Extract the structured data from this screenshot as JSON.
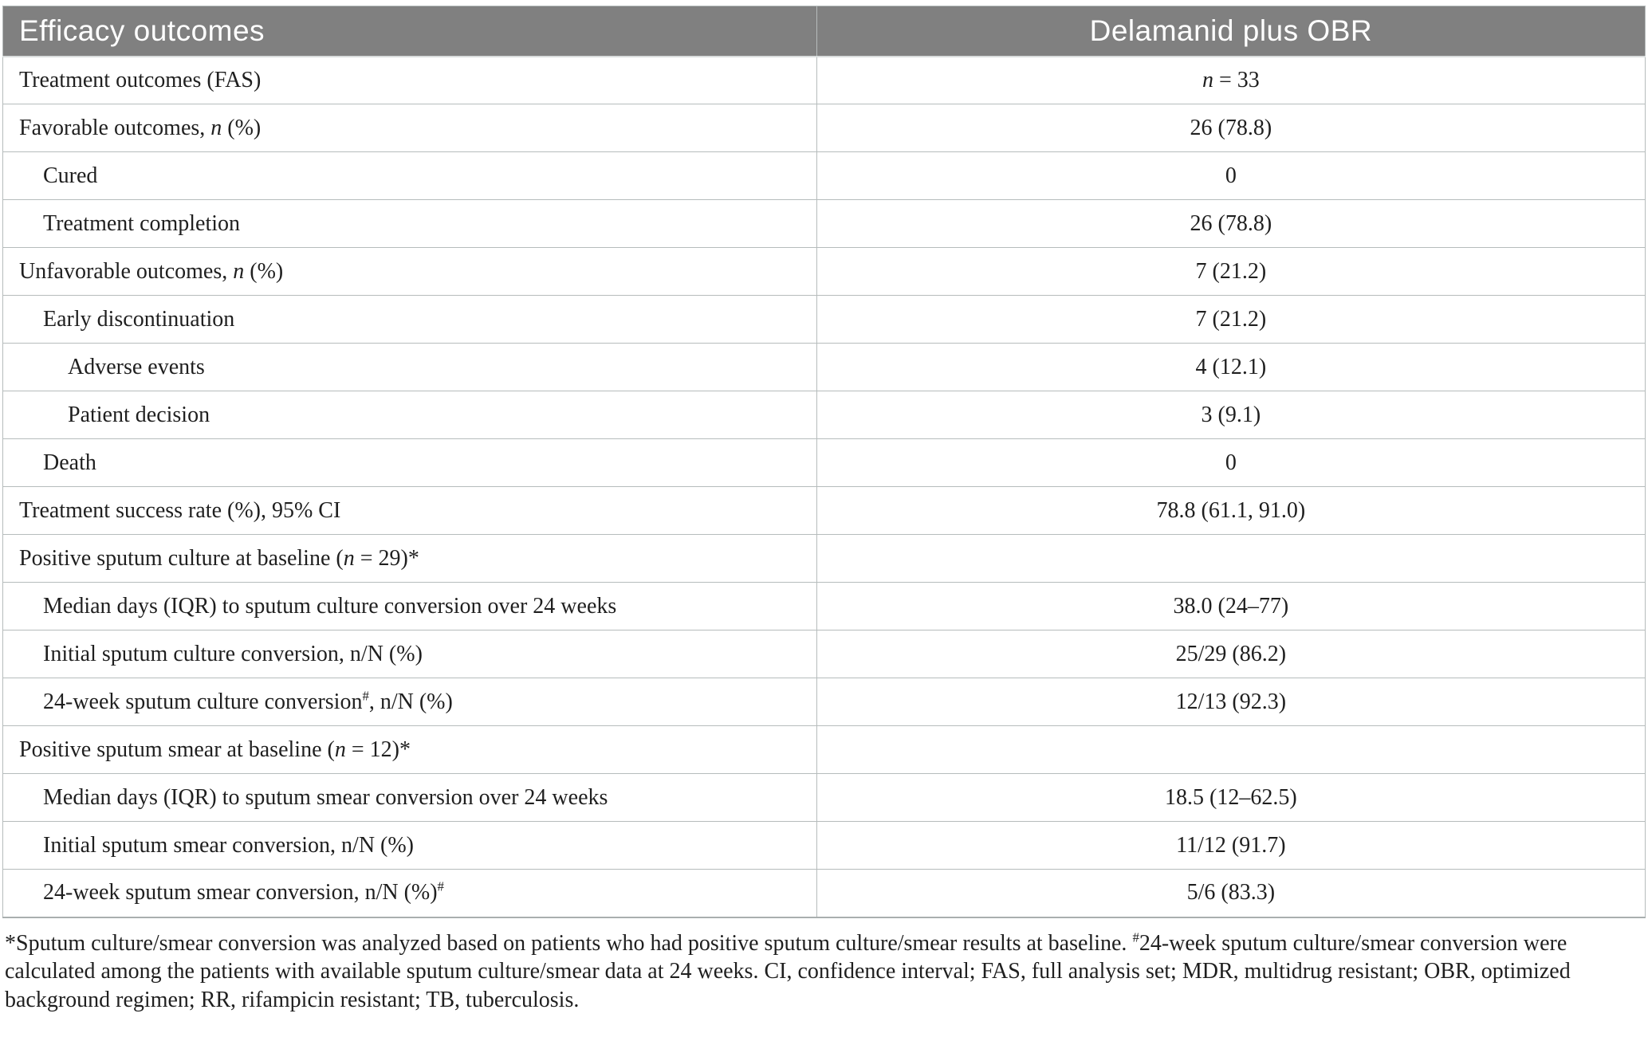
{
  "colors": {
    "header_bg": "#808080",
    "header_text": "#ffffff",
    "border": "#b6bcbc",
    "text": "#1f1f1f"
  },
  "table": {
    "header": {
      "col1": "Efficacy outcomes",
      "col2": "Delamanid plus OBR"
    },
    "rows": [
      {
        "indent": 0,
        "label": [
          {
            "t": "Treatment outcomes (FAS)"
          }
        ],
        "value": [
          {
            "t": "n",
            "i": true
          },
          {
            "t": " = 33"
          }
        ]
      },
      {
        "indent": 0,
        "label": [
          {
            "t": "Favorable outcomes, "
          },
          {
            "t": "n",
            "i": true
          },
          {
            "t": " (%)"
          }
        ],
        "value": [
          {
            "t": "26 (78.8)"
          }
        ]
      },
      {
        "indent": 1,
        "label": [
          {
            "t": "Cured"
          }
        ],
        "value": [
          {
            "t": "0"
          }
        ]
      },
      {
        "indent": 1,
        "label": [
          {
            "t": "Treatment completion"
          }
        ],
        "value": [
          {
            "t": "26 (78.8)"
          }
        ]
      },
      {
        "indent": 0,
        "label": [
          {
            "t": "Unfavorable outcomes, "
          },
          {
            "t": "n",
            "i": true
          },
          {
            "t": " (%)"
          }
        ],
        "value": [
          {
            "t": "7 (21.2)"
          }
        ]
      },
      {
        "indent": 1,
        "label": [
          {
            "t": "Early discontinuation"
          }
        ],
        "value": [
          {
            "t": "7 (21.2)"
          }
        ]
      },
      {
        "indent": 2,
        "label": [
          {
            "t": "Adverse events"
          }
        ],
        "value": [
          {
            "t": "4 (12.1)"
          }
        ]
      },
      {
        "indent": 2,
        "label": [
          {
            "t": "Patient decision"
          }
        ],
        "value": [
          {
            "t": "3 (9.1)"
          }
        ]
      },
      {
        "indent": 1,
        "label": [
          {
            "t": "Death"
          }
        ],
        "value": [
          {
            "t": "0"
          }
        ]
      },
      {
        "indent": 0,
        "label": [
          {
            "t": "Treatment success rate (%), 95% CI"
          }
        ],
        "value": [
          {
            "t": "78.8 (61.1, 91.0)"
          }
        ]
      },
      {
        "indent": 0,
        "label": [
          {
            "t": "Positive sputum culture at baseline ("
          },
          {
            "t": "n",
            "i": true
          },
          {
            "t": " = 29)*"
          }
        ],
        "value": []
      },
      {
        "indent": 1,
        "label": [
          {
            "t": "Median days (IQR) to sputum culture conversion over 24 weeks"
          }
        ],
        "value": [
          {
            "t": "38.0 (24–77)"
          }
        ]
      },
      {
        "indent": 1,
        "label": [
          {
            "t": "Initial sputum culture conversion, n/N (%)"
          }
        ],
        "value": [
          {
            "t": "25/29 (86.2)"
          }
        ]
      },
      {
        "indent": 1,
        "label": [
          {
            "t": "24-week sputum culture conversion"
          },
          {
            "t": "#",
            "sup": true
          },
          {
            "t": ", n/N (%)"
          }
        ],
        "value": [
          {
            "t": "12/13 (92.3)"
          }
        ]
      },
      {
        "indent": 0,
        "label": [
          {
            "t": "Positive sputum smear at baseline ("
          },
          {
            "t": "n",
            "i": true
          },
          {
            "t": " = 12)*"
          }
        ],
        "value": []
      },
      {
        "indent": 1,
        "label": [
          {
            "t": "Median days (IQR) to sputum smear conversion over 24 weeks"
          }
        ],
        "value": [
          {
            "t": "18.5 (12–62.5)"
          }
        ]
      },
      {
        "indent": 1,
        "label": [
          {
            "t": "Initial sputum smear conversion, n/N (%)"
          }
        ],
        "value": [
          {
            "t": "11/12 (91.7)"
          }
        ]
      },
      {
        "indent": 1,
        "label": [
          {
            "t": "24-week sputum smear conversion, n/N (%)"
          },
          {
            "t": "#",
            "sup": true
          }
        ],
        "value": [
          {
            "t": "5/6 (83.3)"
          }
        ]
      }
    ]
  },
  "footnote": [
    {
      "t": "*Sputum culture/smear conversion was analyzed based on patients who had positive sputum culture/smear results at baseline. "
    },
    {
      "t": "#",
      "sup": true
    },
    {
      "t": "24-week sputum culture/smear conversion were calculated among the patients with available sputum culture/smear data at 24 weeks. CI, confidence interval; FAS, full analysis set; MDR, multidrug resistant; OBR, optimized background regimen; RR, rifampicin resistant; TB, tuberculosis."
    }
  ]
}
